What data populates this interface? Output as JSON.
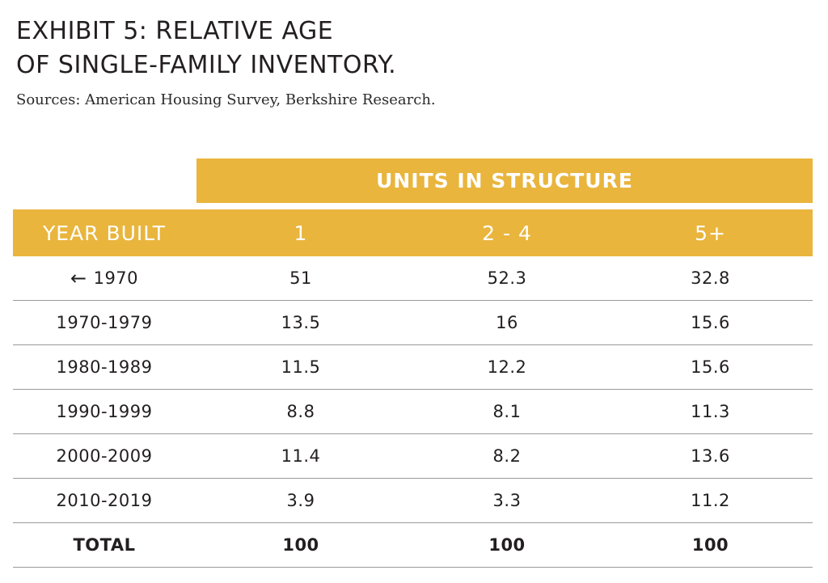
{
  "title": {
    "line1": "EXHIBIT 5: RELATIVE AGE",
    "line2": "OF SINGLE-FAMILY INVENTORY."
  },
  "sources": "Sources: American Housing Survey, Berkshire Research.",
  "colors": {
    "accent": "#e9b53d"
  },
  "table": {
    "group_header": "UNITS IN STRUCTURE",
    "columns": [
      "YEAR BUILT",
      "1",
      "2 - 4",
      "5+"
    ],
    "rows": [
      {
        "arrow": "←",
        "year": "1970",
        "one": "51",
        "two_four": "52.3",
        "five_plus": "32.8"
      },
      {
        "year": "1970-1979",
        "one": "13.5",
        "two_four": "16",
        "five_plus": "15.6"
      },
      {
        "year": "1980-1989",
        "one": "11.5",
        "two_four": "12.2",
        "five_plus": "15.6"
      },
      {
        "year": "1990-1999",
        "one": "8.8",
        "two_four": "8.1",
        "five_plus": "11.3"
      },
      {
        "year": "2000-2009",
        "one": "11.4",
        "two_four": "8.2",
        "five_plus": "13.6"
      },
      {
        "year": "2010-2019",
        "one": "3.9",
        "two_four": "3.3",
        "five_plus": "11.2"
      }
    ],
    "total": {
      "label": "TOTAL",
      "one": "100",
      "two_four": "100",
      "five_plus": "100"
    }
  }
}
